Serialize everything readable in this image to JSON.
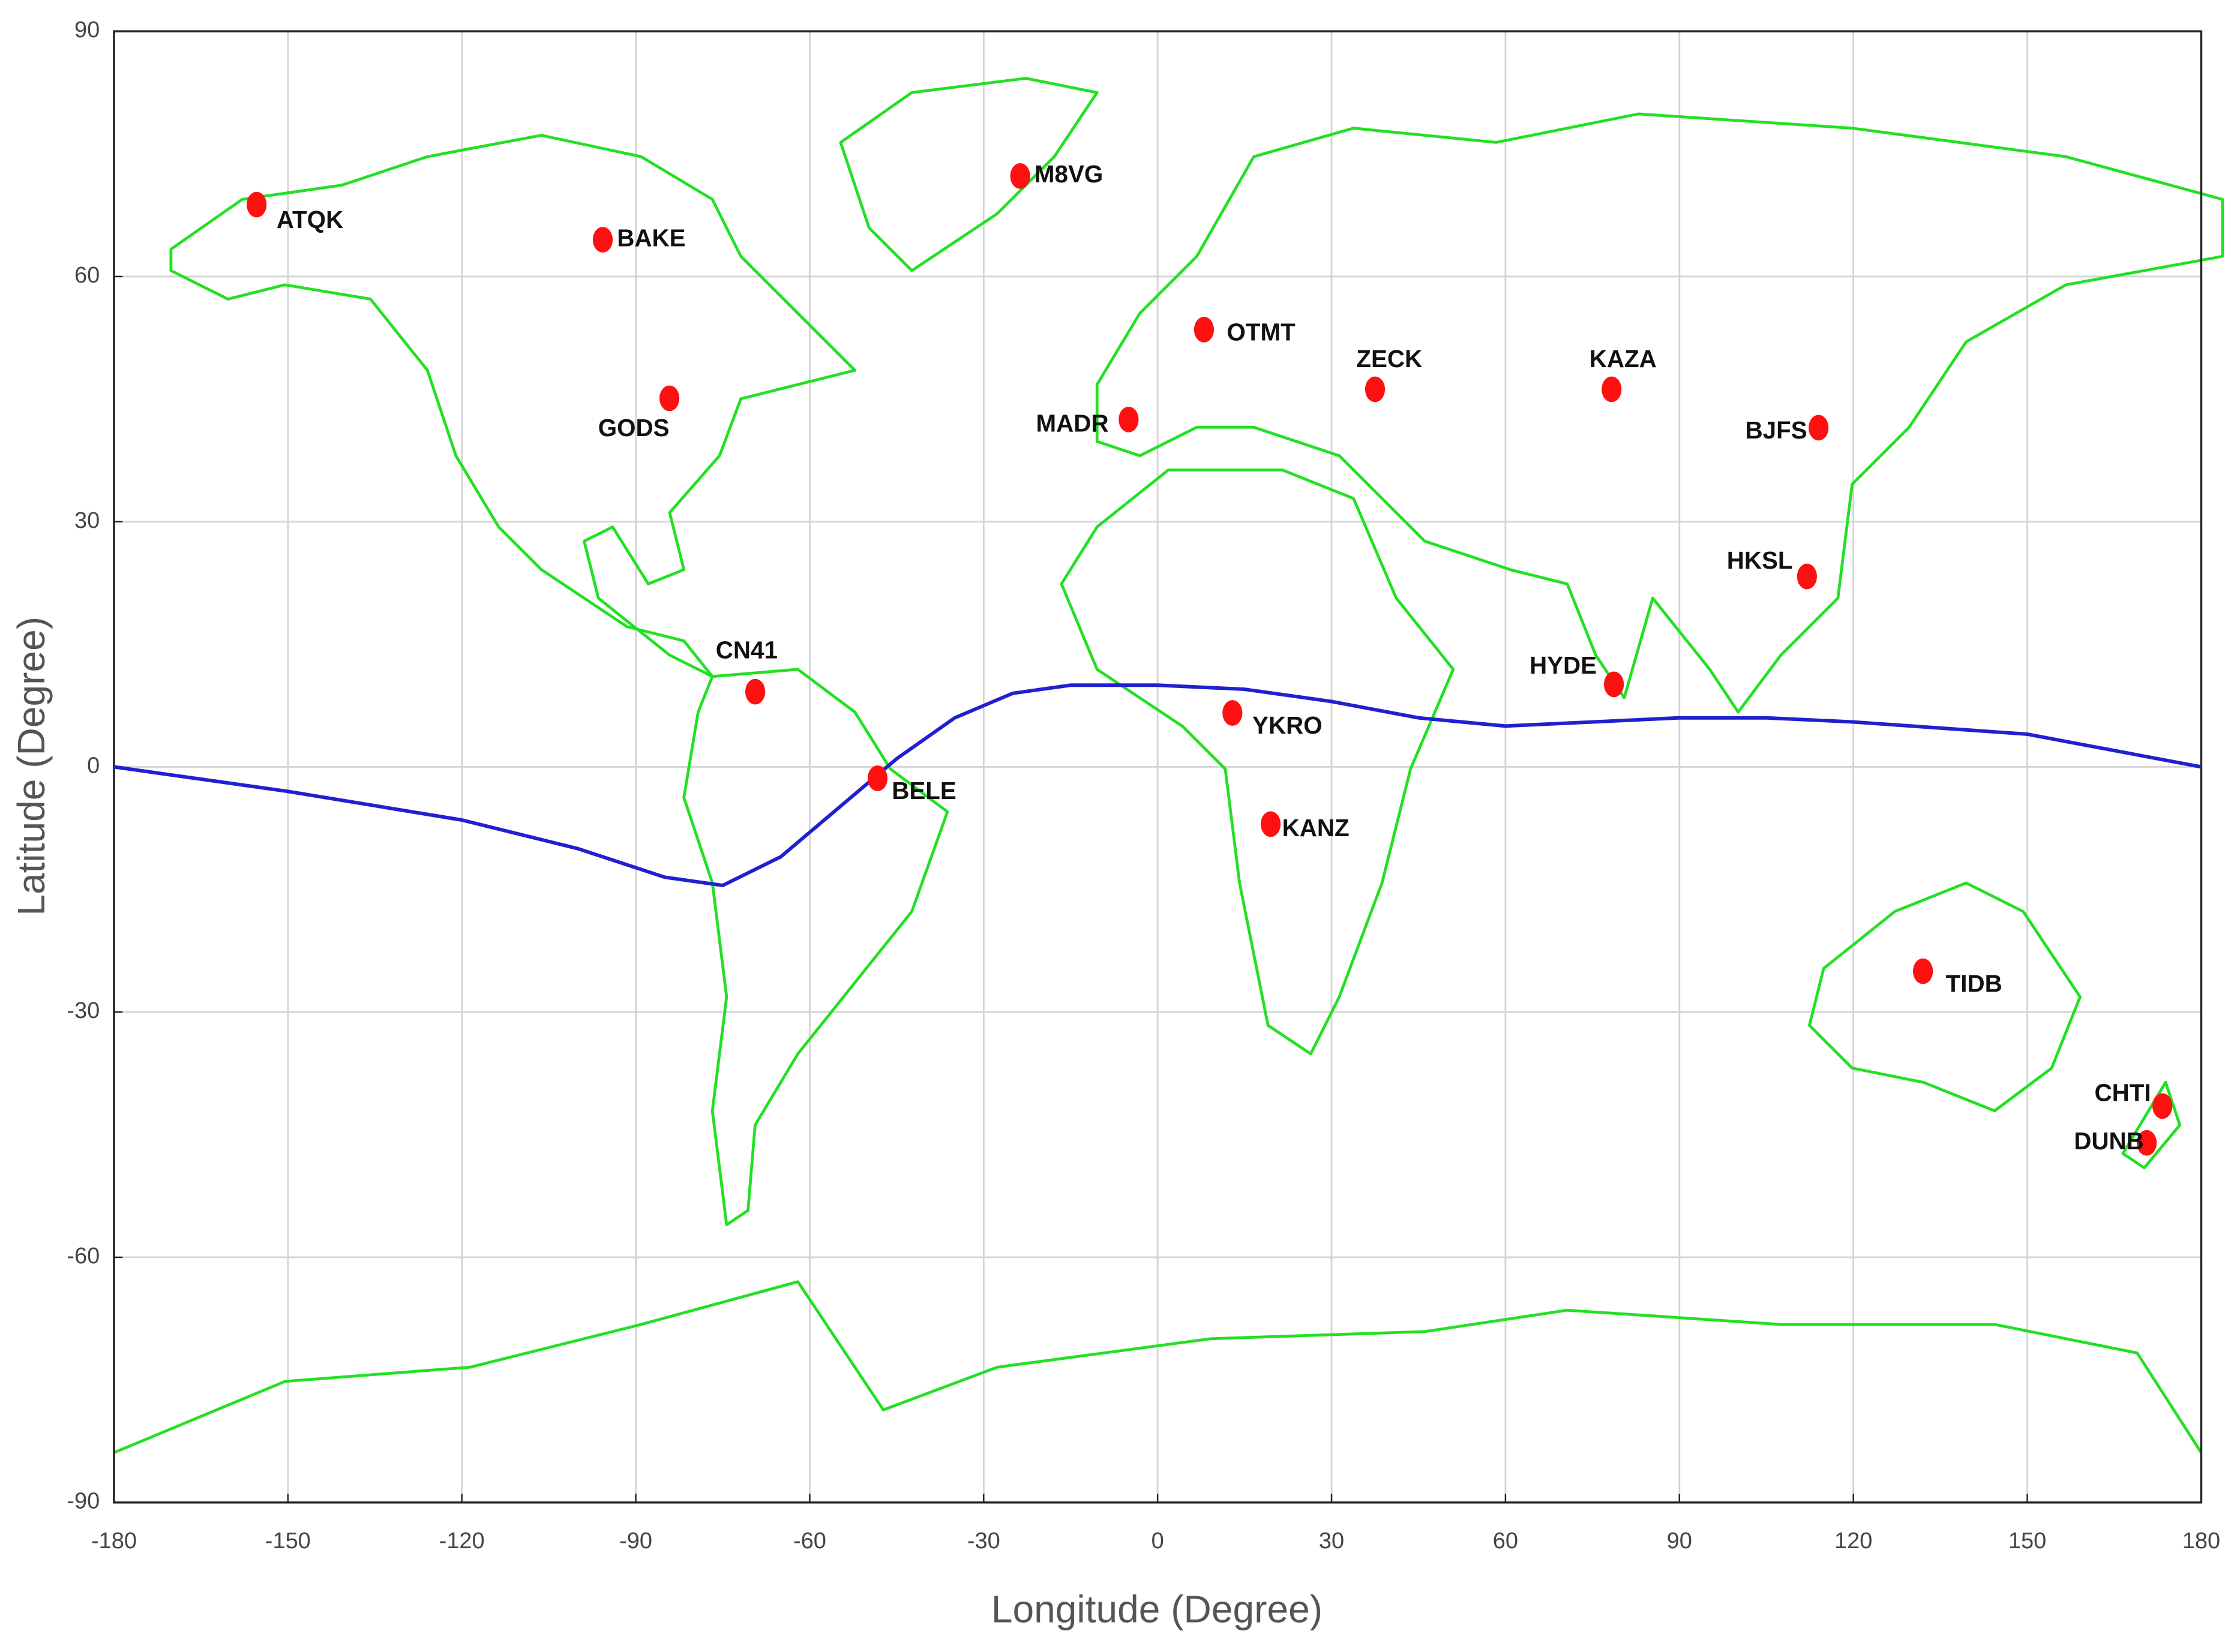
{
  "chart_data": {
    "type": "scatter",
    "x_label": "Longitude (Degree)",
    "y_label": "Latitude (Degree)",
    "xlim": [
      -180,
      180
    ],
    "ylim": [
      -90,
      90
    ],
    "xticks": [
      -180,
      -150,
      -120,
      -90,
      -60,
      -30,
      0,
      30,
      60,
      90,
      120,
      150,
      180
    ],
    "yticks": [
      -90,
      -60,
      -30,
      0,
      30,
      60,
      90
    ],
    "grid": true,
    "color": "#ff1010",
    "labels": [
      "ATQK",
      "BAKE",
      "M8VG",
      "GODS",
      "OTMT",
      "MADR",
      "ZECK",
      "KAZA",
      "BJFS",
      "HKSL",
      "HYDE",
      "CN41",
      "BELE",
      "YKRO",
      "KANZ",
      "TIDB",
      "CHTI",
      "DUNB"
    ],
    "x": [
      -155.4,
      -95.7,
      -23.7,
      -84.2,
      8,
      -5,
      37.5,
      78.3,
      114,
      112,
      78.7,
      -69.4,
      -48.3,
      12.9,
      19.5,
      132,
      173.3,
      170.6
    ],
    "y": [
      68.8,
      64.5,
      72.3,
      45.1,
      53.5,
      42.5,
      46.2,
      46.2,
      41.5,
      23.3,
      10.1,
      9.2,
      -1.4,
      6.6,
      -7,
      -25,
      -41.5,
      -46
    ],
    "line": {
      "color": "#2020d0",
      "x": [
        -180,
        -150,
        -120,
        -100,
        -85,
        -75,
        -65,
        -55,
        -45,
        -35,
        -25,
        -15,
        0,
        15,
        30,
        45,
        60,
        75,
        90,
        105,
        120,
        150,
        180
      ],
      "y": [
        0,
        -3,
        -6.5,
        -10,
        -13.5,
        -14.5,
        -11,
        -5,
        1,
        6,
        9,
        10,
        10,
        9.5,
        8,
        6,
        5,
        5.5,
        6,
        6,
        5.5,
        4,
        0
      ]
    }
  }
}
